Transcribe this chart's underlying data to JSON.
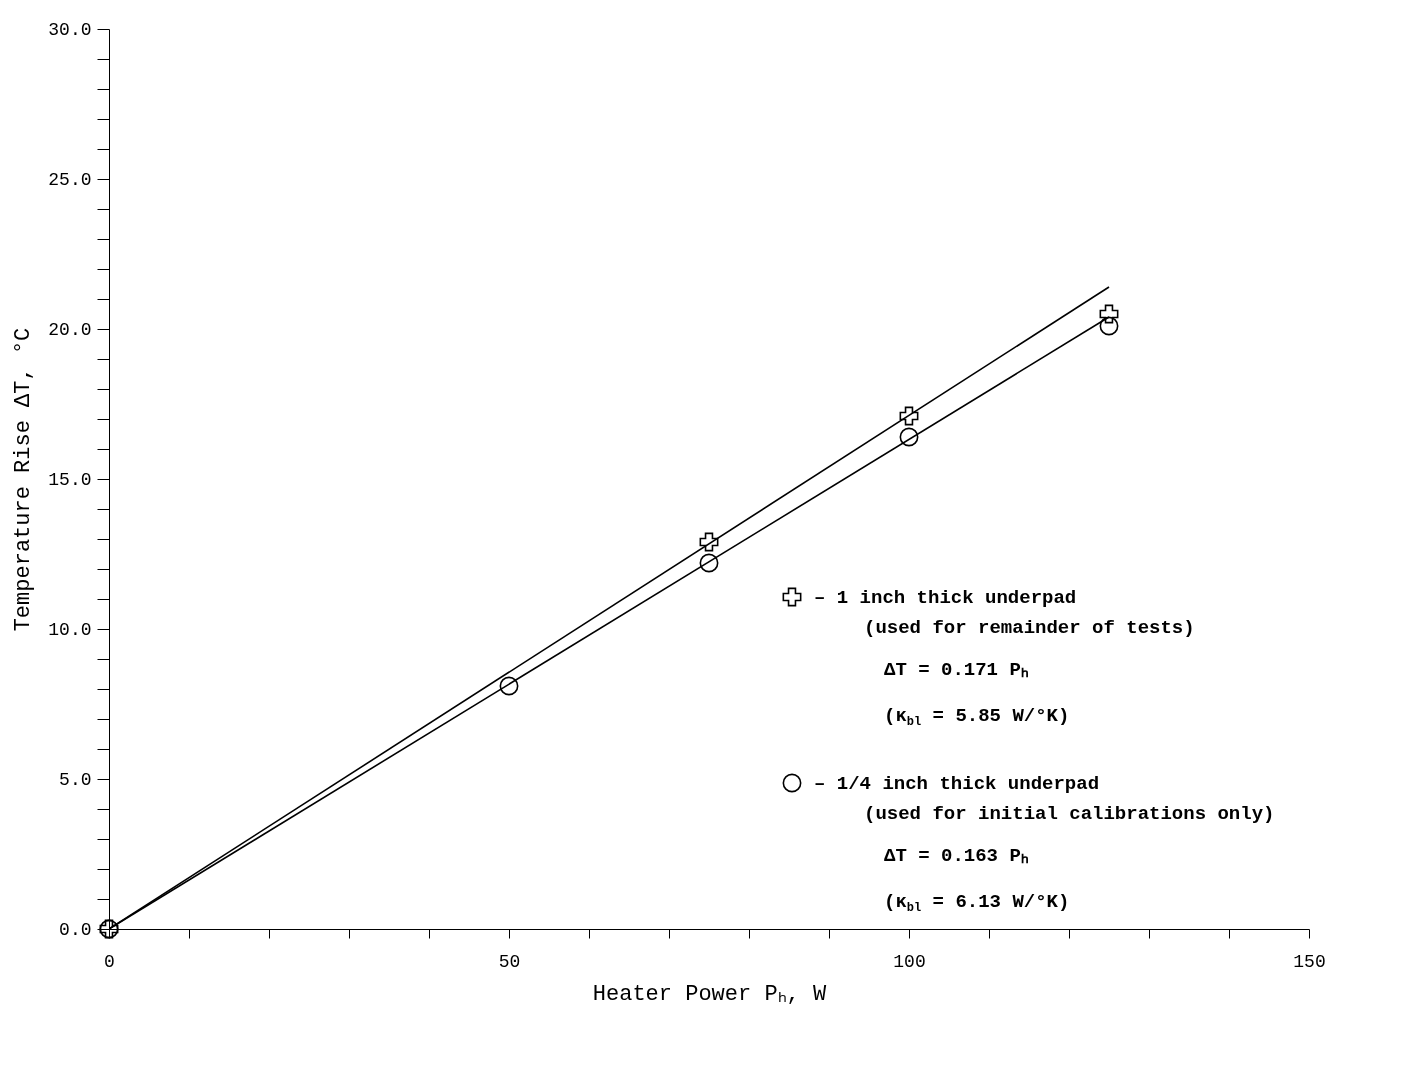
{
  "chart_data": {
    "type": "scatter",
    "xlabel": "Heater Power Pₕ, W",
    "ylabel": "Temperature Rise ΔT, °C",
    "xlim": [
      0,
      150
    ],
    "ylim": [
      0,
      30
    ],
    "xticks": [
      0,
      {
        "value": 10,
        "label": null
      },
      {
        "value": 20,
        "label": null
      },
      {
        "value": 30,
        "label": null
      },
      {
        "value": 40,
        "label": null
      },
      50,
      {
        "value": 60,
        "label": null
      },
      {
        "value": 70,
        "label": null
      },
      {
        "value": 80,
        "label": null
      },
      {
        "value": 90,
        "label": null
      },
      100,
      {
        "value": 110,
        "label": null
      },
      {
        "value": 120,
        "label": null
      },
      {
        "value": 130,
        "label": null
      },
      {
        "value": 140,
        "label": null
      },
      150
    ],
    "yticks": [
      {
        "value": 0,
        "label": "0.0"
      },
      {
        "value": 1,
        "label": null
      },
      {
        "value": 2,
        "label": null
      },
      {
        "value": 3,
        "label": null
      },
      {
        "value": 4,
        "label": null
      },
      {
        "value": 5,
        "label": "5.0"
      },
      {
        "value": 6,
        "label": null
      },
      {
        "value": 7,
        "label": null
      },
      {
        "value": 8,
        "label": null
      },
      {
        "value": 9,
        "label": null
      },
      {
        "value": 10,
        "label": "10.0"
      },
      {
        "value": 11,
        "label": null
      },
      {
        "value": 12,
        "label": null
      },
      {
        "value": 13,
        "label": null
      },
      {
        "value": 14,
        "label": null
      },
      {
        "value": 15,
        "label": "15.0"
      },
      {
        "value": 16,
        "label": null
      },
      {
        "value": 17,
        "label": null
      },
      {
        "value": 18,
        "label": null
      },
      {
        "value": 19,
        "label": null
      },
      {
        "value": 20,
        "label": "20.0"
      },
      {
        "value": 21,
        "label": null
      },
      {
        "value": 22,
        "label": null
      },
      {
        "value": 23,
        "label": null
      },
      {
        "value": 24,
        "label": null
      },
      {
        "value": 25,
        "label": "25.0"
      },
      {
        "value": 26,
        "label": null
      },
      {
        "value": 27,
        "label": null
      },
      {
        "value": 28,
        "label": null
      },
      {
        "value": 29,
        "label": null
      },
      {
        "value": 30,
        "label": "30.0"
      }
    ],
    "grid": false,
    "legend": "right",
    "series": [
      {
        "name": "– 1 inch thick underpad",
        "marker": "cross",
        "color": "#000000",
        "x": [
          0,
          75,
          100,
          125
        ],
        "values": [
          0,
          12.9,
          17.1,
          20.5
        ]
      },
      {
        "name": "– 1/4 inch thick underpad",
        "marker": "circle",
        "color": "#000000",
        "x": [
          0,
          50,
          75,
          100,
          125
        ],
        "values": [
          0,
          8.1,
          12.2,
          16.4,
          20.1
        ]
      },
      {
        "type": "line",
        "color": "#000000",
        "line_style": "solid",
        "x": [
          0,
          125
        ],
        "values": [
          0,
          21.4
        ]
      },
      {
        "type": "line",
        "color": "#000000",
        "line_style": "solid",
        "x": [
          0,
          125
        ],
        "values": [
          0,
          20.4
        ]
      }
    ],
    "annotations": [
      "(used for remainder of tests)",
      "ΔT = 0.171 Pₕ",
      "(κ$_{bl}$ = 5.85 W/°K)",
      "(used for initial calibrations only)",
      "ΔT = 0.163 Pₕ",
      "(κ$_{bl}$ = 6.13 W/°K)"
    ]
  }
}
